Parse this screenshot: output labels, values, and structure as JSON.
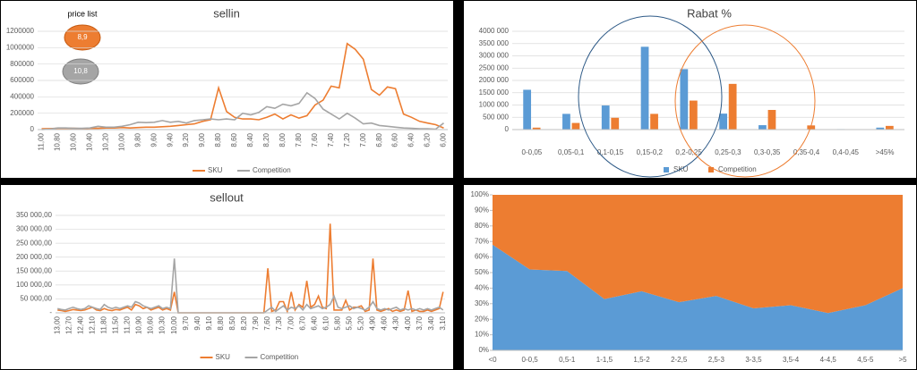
{
  "chart_data": [
    {
      "type": "line",
      "title": "sellin",
      "annotations": [
        "price list",
        "8,9",
        "10,8"
      ],
      "categories": [
        "11,00",
        null,
        "10,80",
        null,
        "10,60",
        null,
        "10,40",
        null,
        "10,20",
        null,
        "10,00",
        null,
        "9,80",
        null,
        "9,60",
        null,
        "9,40",
        null,
        "9,20",
        null,
        "9,00",
        null,
        "8,80",
        null,
        "8,60",
        null,
        "8,40",
        null,
        "8,20",
        null,
        "8,00",
        null,
        "7,80",
        null,
        "7,60",
        null,
        "7,40",
        null,
        "7,20",
        null,
        "7,00",
        null,
        "6,80",
        null,
        "6,60",
        null,
        "6,40",
        null,
        "6,20",
        null,
        "6,00"
      ],
      "series": [
        {
          "name": "SKU",
          "color": "#ed7d31",
          "values": [
            10000,
            12000,
            15000,
            15000,
            15000,
            12000,
            15000,
            15000,
            20000,
            20000,
            25000,
            20000,
            25000,
            30000,
            30000,
            35000,
            40000,
            50000,
            60000,
            70000,
            100000,
            120000,
            510000,
            220000,
            150000,
            130000,
            130000,
            120000,
            150000,
            190000,
            130000,
            180000,
            140000,
            170000,
            300000,
            360000,
            530000,
            510000,
            1050000,
            980000,
            860000,
            490000,
            420000,
            520000,
            500000,
            190000,
            150000,
            100000,
            80000,
            60000,
            20000
          ]
        },
        {
          "name": "Competition",
          "color": "#a5a5a5",
          "values": [
            0,
            5000,
            20000,
            20000,
            15000,
            15000,
            20000,
            40000,
            30000,
            30000,
            40000,
            60000,
            90000,
            85000,
            90000,
            110000,
            90000,
            100000,
            80000,
            110000,
            120000,
            130000,
            120000,
            130000,
            120000,
            200000,
            180000,
            210000,
            280000,
            260000,
            310000,
            290000,
            320000,
            450000,
            380000,
            250000,
            190000,
            130000,
            200000,
            140000,
            70000,
            80000,
            50000,
            40000,
            30000,
            20000,
            15000,
            10000,
            10000,
            5000,
            80000
          ]
        }
      ],
      "ylim": [
        0,
        1200000
      ],
      "yticks": [
        0,
        200000,
        400000,
        600000,
        800000,
        1000000,
        1200000
      ],
      "grid": true,
      "legend": "bottom"
    },
    {
      "type": "bar",
      "title": "Rabat %",
      "categories": [
        "0-0,05",
        "0,05-0,1",
        "0,1-0,15",
        "0,15-0,2",
        "0,2-0,25",
        "0,25-0,3",
        "0,3-0,35",
        "0,35-0,4",
        "0,4-0,45",
        ">45%"
      ],
      "series": [
        {
          "name": "SKU",
          "color": "#5b9bd5",
          "values": [
            1620000,
            640000,
            980000,
            3370000,
            2460000,
            650000,
            180000,
            0,
            20000,
            80000
          ]
        },
        {
          "name": "Competition",
          "color": "#ed7d31",
          "values": [
            80000,
            270000,
            480000,
            640000,
            1180000,
            1860000,
            800000,
            170000,
            10000,
            150000
          ]
        }
      ],
      "ylim": [
        0,
        4000000
      ],
      "yticks": [
        0,
        {
          "value": 500000,
          "label": "500 000"
        },
        {
          "value": 1000000,
          "label": "1000 000"
        },
        {
          "value": 1500000,
          "label": "1500 000"
        },
        {
          "value": 2000000,
          "label": "2000 000"
        },
        {
          "value": 2500000,
          "label": "2500 000"
        },
        {
          "value": 3000000,
          "label": "3000 000"
        },
        {
          "value": 3500000,
          "label": "3500 000"
        },
        {
          "value": 4000000,
          "label": "4000 000"
        }
      ],
      "grid": true,
      "legend": "bottom"
    },
    {
      "type": "line",
      "title": "sellout",
      "categories": [
        "13,00",
        null,
        null,
        "12,70",
        null,
        null,
        "12,40",
        null,
        null,
        "12,10",
        null,
        null,
        "11,80",
        null,
        null,
        "11,50",
        null,
        null,
        "11,20",
        null,
        null,
        "10,90",
        null,
        null,
        "10,60",
        null,
        null,
        "10,30",
        null,
        null,
        "10,00",
        null,
        null,
        "9,70",
        null,
        null,
        "9,40",
        null,
        null,
        "9,10",
        null,
        null,
        "8,80",
        null,
        null,
        "8,50",
        null,
        null,
        "8,20",
        null,
        null,
        "7,90",
        null,
        null,
        "7,60",
        null,
        null,
        "7,30",
        null,
        null,
        "7,00",
        null,
        null,
        "6,70",
        null,
        null,
        "6,40",
        null,
        null,
        "6,10",
        null,
        null,
        "5,80",
        null,
        null,
        "5,50",
        null,
        null,
        "5,20",
        null,
        null,
        "4,90",
        null,
        null,
        "4,60",
        null,
        null,
        "4,30",
        null,
        null,
        "4,00",
        null,
        null,
        "3,70",
        null,
        null,
        "3,40",
        null,
        null,
        "3,10"
      ],
      "series": [
        {
          "name": "SKU",
          "color": "#ed7d31",
          "values": [
            10000,
            8000,
            5000,
            8000,
            12000,
            10000,
            8000,
            10000,
            15000,
            20000,
            10000,
            8000,
            15000,
            10000,
            8000,
            12000,
            10000,
            15000,
            20000,
            10000,
            30000,
            25000,
            15000,
            20000,
            10000,
            15000,
            20000,
            10000,
            15000,
            10000,
            75000,
            0,
            0,
            0,
            0,
            0,
            0,
            0,
            0,
            0,
            0,
            0,
            0,
            0,
            0,
            0,
            0,
            0,
            0,
            0,
            0,
            0,
            0,
            0,
            160000,
            5000,
            10000,
            40000,
            40000,
            5000,
            75000,
            10000,
            30000,
            20000,
            115000,
            20000,
            30000,
            60000,
            20000,
            15000,
            320000,
            10000,
            10000,
            10000,
            45000,
            10000,
            20000,
            20000,
            25000,
            5000,
            10000,
            195000,
            10000,
            5000,
            10000,
            15000,
            5000,
            10000,
            5000,
            10000,
            80000,
            5000,
            10000,
            5000,
            5000,
            10000,
            5000,
            10000,
            15000,
            75000
          ]
        },
        {
          "name": "Competition",
          "color": "#a5a5a5",
          "values": [
            15000,
            12000,
            10000,
            15000,
            20000,
            15000,
            12000,
            15000,
            25000,
            20000,
            15000,
            12000,
            30000,
            20000,
            15000,
            20000,
            15000,
            20000,
            25000,
            20000,
            40000,
            35000,
            25000,
            20000,
            15000,
            20000,
            25000,
            15000,
            20000,
            15000,
            195000,
            0,
            0,
            0,
            0,
            0,
            0,
            0,
            0,
            0,
            0,
            0,
            0,
            0,
            0,
            0,
            0,
            0,
            0,
            0,
            0,
            0,
            0,
            0,
            10000,
            20000,
            5000,
            15000,
            25000,
            10000,
            20000,
            15000,
            25000,
            10000,
            30000,
            15000,
            20000,
            25000,
            15000,
            20000,
            30000,
            60000,
            20000,
            15000,
            20000,
            25000,
            15000,
            20000,
            15000,
            10000,
            20000,
            40000,
            15000,
            10000,
            15000,
            10000,
            15000,
            20000,
            10000,
            15000,
            10000,
            15000,
            10000,
            15000,
            10000,
            15000,
            10000,
            15000,
            20000,
            10000
          ]
        }
      ],
      "ylim": [
        0,
        350000
      ],
      "yticks": [
        {
          "value": 0,
          "label": "-"
        },
        {
          "value": 50000,
          "label": "50 000,00"
        },
        {
          "value": 100000,
          "label": "100 000,00"
        },
        {
          "value": 150000,
          "label": "150 000,00"
        },
        {
          "value": 200000,
          "label": "200 000,00"
        },
        {
          "value": 250000,
          "label": "250 000,00"
        },
        {
          "value": 300000,
          "label": "300 000,00"
        },
        {
          "value": 350000,
          "label": "350 000,00"
        }
      ],
      "grid": true,
      "legend": "bottom"
    },
    {
      "type": "area",
      "categories": [
        "<0",
        "0-0,5",
        "0,5-1",
        "1-1,5",
        "1,5-2",
        "2-2,5",
        "2,5-3",
        "3-3,5",
        "3,5-4",
        "4-4,5",
        "4,5-5",
        ">5"
      ],
      "series": [
        {
          "color": "#5b9bd5",
          "values": [
            68,
            52,
            51,
            33,
            38,
            31,
            35,
            27,
            29,
            24,
            29,
            40
          ]
        },
        {
          "color": "#ed7d31",
          "values": [
            32,
            48,
            49,
            67,
            62,
            69,
            65,
            73,
            71,
            76,
            71,
            60
          ]
        }
      ],
      "ylim": [
        0,
        100
      ],
      "yticks": [
        {
          "value": 0,
          "label": "0%"
        },
        {
          "value": 10,
          "label": "10%"
        },
        {
          "value": 20,
          "label": "20%"
        },
        {
          "value": 30,
          "label": "30%"
        },
        {
          "value": 40,
          "label": "40%"
        },
        {
          "value": 50,
          "label": "50%"
        },
        {
          "value": 60,
          "label": "60%"
        },
        {
          "value": 70,
          "label": "70%"
        },
        {
          "value": 80,
          "label": "80%"
        },
        {
          "value": 90,
          "label": "90%"
        },
        {
          "value": 100,
          "label": "100%"
        }
      ],
      "grid": false
    }
  ]
}
